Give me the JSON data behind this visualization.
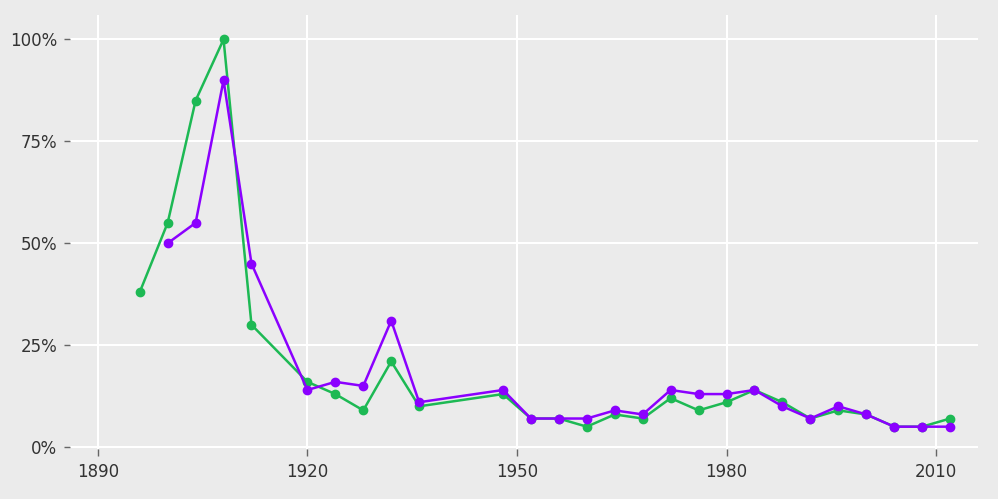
{
  "men": {
    "years": [
      1896,
      1900,
      1904,
      1908,
      1912,
      1920,
      1924,
      1928,
      1932,
      1936,
      1948,
      1952,
      1956,
      1960,
      1964,
      1968,
      1972,
      1976,
      1980,
      1984,
      1988,
      1992,
      1996,
      2000,
      2004,
      2008,
      2012
    ],
    "values": [
      0.38,
      0.55,
      0.85,
      1.0,
      0.3,
      0.16,
      0.13,
      0.09,
      0.21,
      0.1,
      0.13,
      0.07,
      0.07,
      0.05,
      0.08,
      0.07,
      0.12,
      0.09,
      0.11,
      0.14,
      0.11,
      0.07,
      0.09,
      0.08,
      0.05,
      0.05,
      0.07
    ],
    "color": "#1DB954"
  },
  "women": {
    "years": [
      1900,
      1904,
      1908,
      1912,
      1920,
      1924,
      1928,
      1932,
      1936,
      1948,
      1952,
      1956,
      1960,
      1964,
      1968,
      1972,
      1976,
      1980,
      1984,
      1988,
      1992,
      1996,
      2000,
      2004,
      2008,
      2012
    ],
    "values": [
      0.5,
      0.55,
      0.9,
      0.45,
      0.14,
      0.16,
      0.15,
      0.31,
      0.11,
      0.14,
      0.07,
      0.07,
      0.07,
      0.09,
      0.08,
      0.14,
      0.13,
      0.13,
      0.14,
      0.1,
      0.07,
      0.1,
      0.08,
      0.05,
      0.05,
      0.05
    ],
    "color": "#8B00FF"
  },
  "bg_color": "#EBEBEB",
  "panel_color": "#EBEBEB",
  "grid_color": "#FFFFFF",
  "xlim": [
    1886,
    2016
  ],
  "ylim": [
    -0.005,
    1.06
  ],
  "xticks": [
    1890,
    1920,
    1950,
    1980,
    2010
  ],
  "yticks": [
    0.0,
    0.25,
    0.5,
    0.75,
    1.0
  ],
  "ytick_labels": [
    "0%",
    "25%",
    "50%",
    "75%",
    "100%"
  ],
  "marker_size": 6,
  "line_width": 1.8,
  "tick_fontsize": 12
}
